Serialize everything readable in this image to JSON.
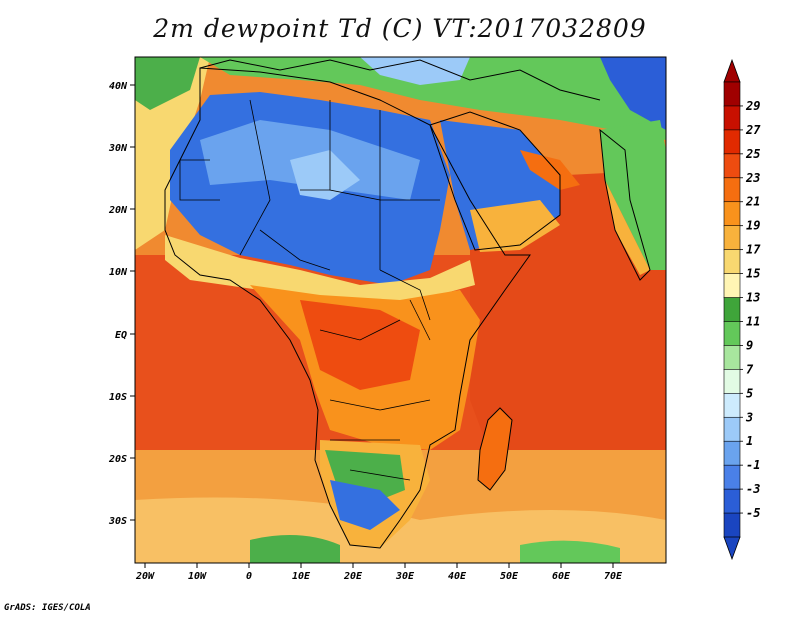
{
  "title": "2m dewpoint Td (C) VT:2017032809",
  "credit": "GrADS: IGES/COLA",
  "lat_ticks": [
    "40N",
    "30N",
    "20N",
    "10N",
    "EQ",
    "10S",
    "20S",
    "30S"
  ],
  "lon_ticks": [
    "20W",
    "10W",
    "0",
    "10E",
    "20E",
    "30E",
    "40E",
    "50E",
    "60E",
    "70E"
  ],
  "colorbar": {
    "levels": [
      "29",
      "27",
      "25",
      "23",
      "21",
      "19",
      "17",
      "15",
      "13",
      "11",
      "9",
      "7",
      "5",
      "3",
      "1",
      "-1",
      "-3",
      "-5"
    ],
    "colors": [
      "#a00000",
      "#c81000",
      "#e12a00",
      "#ee4c10",
      "#f56e10",
      "#f9921c",
      "#f8b23c",
      "#f8d870",
      "#fff5b4",
      "#3fa53a",
      "#63c85a",
      "#a8e69e",
      "#e2fbe4",
      "#cdebfd",
      "#9ccaf8",
      "#6aa3ee",
      "#4a80e8",
      "#2b5ed7",
      "#1a45c0"
    ]
  },
  "map_colors": {
    "ocean_trop": "#e8501c",
    "ocean_mid": "#f08a30",
    "ocean_sub": "#f7b455",
    "land_dry": "#3470e0",
    "land_semi": "#7aaef0",
    "land_green": "#4caf4a",
    "land_moist": "#f3a43a"
  }
}
